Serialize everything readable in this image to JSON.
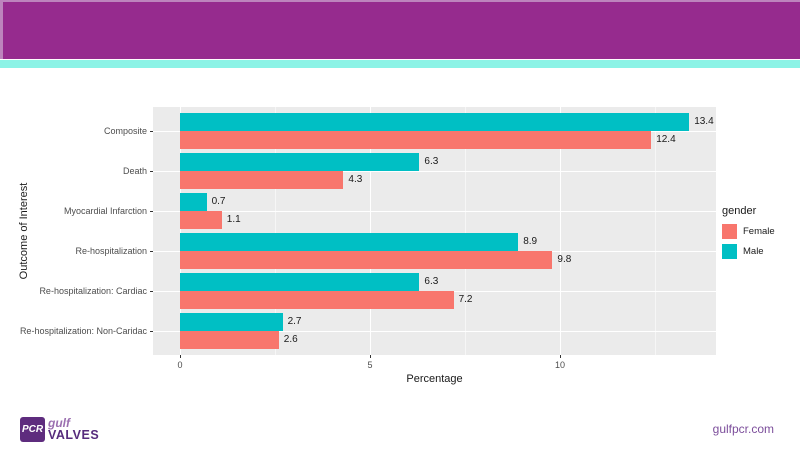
{
  "header": {
    "bar_color": "#962B8E",
    "edge_color": "#BD84BD",
    "accent_color": "#8CF3E6"
  },
  "footer": {
    "logo": {
      "box_text": "PCR",
      "box_color": "#5E2C7E",
      "name_top": "gulf",
      "name_top_color": "#9B6FB0",
      "name_bottom": "VALVES",
      "name_bottom_color": "#562B7D"
    },
    "website": "gulfpcr.com",
    "website_color": "#7C4E9B"
  },
  "chart_data": {
    "type": "bar",
    "orientation": "horizontal",
    "title": "",
    "xlabel": "Percentage",
    "ylabel": "Outcome of Interest",
    "x_ticks": [
      0,
      5,
      10
    ],
    "x_minor_ticks": [
      2.5,
      7.5,
      12.5
    ],
    "xlim": [
      -0.7,
      14.1
    ],
    "panel_background": "#EBEBEB",
    "grid_major_color": "#FFFFFF",
    "grid_minor_color": "rgba(255,255,255,0.55)",
    "categories": [
      "Composite",
      "Death",
      "Myocardial Infarction",
      "Re-hospitalization",
      "Re-hospitalization: Cardiac",
      "Re-hospitalization: Non-Caridac"
    ],
    "series": [
      {
        "name": "Male",
        "color": "#00BFC4",
        "values": [
          13.4,
          6.3,
          0.7,
          8.9,
          6.3,
          2.7
        ]
      },
      {
        "name": "Female",
        "color": "#F8766D",
        "values": [
          12.4,
          4.3,
          1.1,
          9.8,
          7.2,
          2.6
        ]
      }
    ],
    "legend": {
      "title": "gender",
      "entries": [
        {
          "label": "Female",
          "color": "#F8766D"
        },
        {
          "label": "Male",
          "color": "#00BFC4"
        }
      ],
      "position": "right"
    }
  }
}
